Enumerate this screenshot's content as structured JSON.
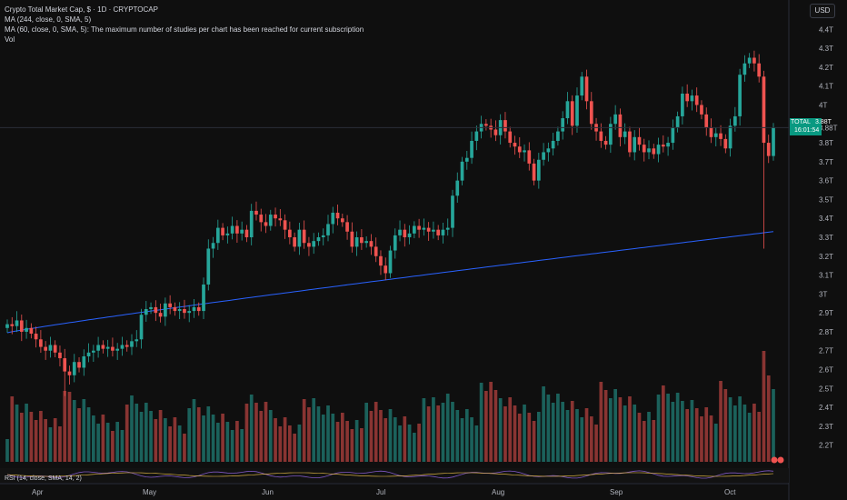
{
  "legend": {
    "title": "Crypto Total Market Cap, $ · 1D · CRYPTOCAP",
    "ma1": "MA (244, close, 0, SMA, 5)",
    "ma2": "MA (60, close, 0, SMA, 5): The maximum number of studies per chart has been reached for current subscription",
    "vol": "Vol"
  },
  "currency_button": "USD",
  "last_price": {
    "symbol": "TOTAL",
    "value": "3.88T",
    "countdown": "16:01:54",
    "value_num": 3.88
  },
  "rsi_label": "RSI (14, close, SMA, 14, 2)",
  "colors": {
    "up": "#26a69a",
    "down": "#ef5350",
    "ma": "#2962ff",
    "price_tag": "#089981",
    "background": "#0f0f0f"
  },
  "chart_data": {
    "type": "candlestick",
    "y_ticks": [
      "4.4T",
      "4.3T",
      "4.2T",
      "4.1T",
      "4T",
      "3.88T",
      "3.8T",
      "3.7T",
      "3.6T",
      "3.5T",
      "3.4T",
      "3.3T",
      "3.2T",
      "3.1T",
      "3T",
      "2.9T",
      "2.8T",
      "2.7T",
      "2.6T",
      "2.5T",
      "2.4T",
      "2.3T",
      "2.2T"
    ],
    "x_ticks": [
      "Apr",
      "May",
      "Jun",
      "Jul",
      "Aug",
      "Sep",
      "Oct"
    ],
    "ylim": [
      2.16,
      4.44
    ],
    "close": [
      2.84,
      2.83,
      2.86,
      2.8,
      2.82,
      2.79,
      2.76,
      2.72,
      2.7,
      2.73,
      2.69,
      2.66,
      2.59,
      2.57,
      2.64,
      2.61,
      2.67,
      2.69,
      2.7,
      2.73,
      2.71,
      2.72,
      2.7,
      2.71,
      2.73,
      2.72,
      2.75,
      2.76,
      2.89,
      2.92,
      2.93,
      2.9,
      2.88,
      2.95,
      2.93,
      2.91,
      2.92,
      2.9,
      2.91,
      2.93,
      2.91,
      3.05,
      3.24,
      3.27,
      3.35,
      3.31,
      3.32,
      3.36,
      3.32,
      3.34,
      3.3,
      3.44,
      3.42,
      3.38,
      3.36,
      3.42,
      3.4,
      3.39,
      3.34,
      3.3,
      3.25,
      3.34,
      3.27,
      3.25,
      3.28,
      3.3,
      3.31,
      3.37,
      3.43,
      3.4,
      3.38,
      3.33,
      3.25,
      3.3,
      3.27,
      3.28,
      3.25,
      3.2,
      3.15,
      3.11,
      3.23,
      3.31,
      3.34,
      3.3,
      3.32,
      3.36,
      3.34,
      3.35,
      3.33,
      3.34,
      3.31,
      3.34,
      3.35,
      3.52,
      3.6,
      3.7,
      3.72,
      3.81,
      3.86,
      3.9,
      3.89,
      3.87,
      3.84,
      3.92,
      3.86,
      3.8,
      3.78,
      3.75,
      3.76,
      3.69,
      3.6,
      3.71,
      3.75,
      3.77,
      3.81,
      3.86,
      3.93,
      4.02,
      3.89,
      4.05,
      4.15,
      4.02,
      3.9,
      3.86,
      3.81,
      3.79,
      3.9,
      3.95,
      3.83,
      3.86,
      3.75,
      3.83,
      3.79,
      3.75,
      3.77,
      3.74,
      3.79,
      3.78,
      3.8,
      3.88,
      3.94,
      4.06,
      4.02,
      4.05,
      4.0,
      3.95,
      3.88,
      3.83,
      3.85,
      3.82,
      3.77,
      3.89,
      3.94,
      4.16,
      4.22,
      4.25,
      4.22,
      4.15,
      3.8,
      3.73,
      3.88
    ]
  }
}
